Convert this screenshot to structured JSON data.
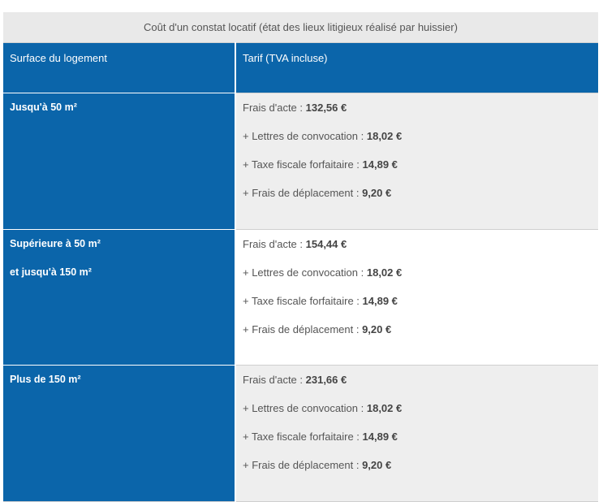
{
  "table": {
    "caption": "Coût d'un constat locatif (état des lieux litigieux réalisé par huissier)",
    "headers": {
      "surface": "Surface du logement",
      "tarif": "Tarif (TVA incluse)"
    },
    "rows": [
      {
        "surface_lines": [
          "Jusqu'à 50 m²"
        ],
        "items": [
          {
            "label": "Frais d'acte : ",
            "amount": "132,56 €"
          },
          {
            "label": "+ Lettres de convocation : ",
            "amount": "18,02 €"
          },
          {
            "label": "+ Taxe fiscale forfaitaire : ",
            "amount": "14,89 €"
          },
          {
            "label": "+ Frais de déplacement : ",
            "amount": "9,20 €"
          }
        ]
      },
      {
        "surface_lines": [
          "Supérieure à 50 m²",
          "et jusqu'à 150 m²"
        ],
        "items": [
          {
            "label": "Frais d'acte : ",
            "amount": "154,44 €"
          },
          {
            "label": "+ Lettres de convocation : ",
            "amount": "18,02 €"
          },
          {
            "label": "+ Taxe fiscale forfaitaire : ",
            "amount": "14,89 €"
          },
          {
            "label": "+ Frais de déplacement : ",
            "amount": "9,20 €"
          }
        ]
      },
      {
        "surface_lines": [
          "Plus de 150 m²"
        ],
        "items": [
          {
            "label": "Frais d'acte : ",
            "amount": "231,66 €"
          },
          {
            "label": "+ Lettres de convocation : ",
            "amount": "18,02 €"
          },
          {
            "label": "+ Taxe fiscale forfaitaire : ",
            "amount": "14,89 €"
          },
          {
            "label": "+ Frais de déplacement : ",
            "amount": "9,20 €"
          }
        ]
      }
    ]
  },
  "colors": {
    "header_blue": "#0b65aa",
    "caption_bg": "#e9e9e9",
    "row_alt_bg": "#eeeeee"
  }
}
